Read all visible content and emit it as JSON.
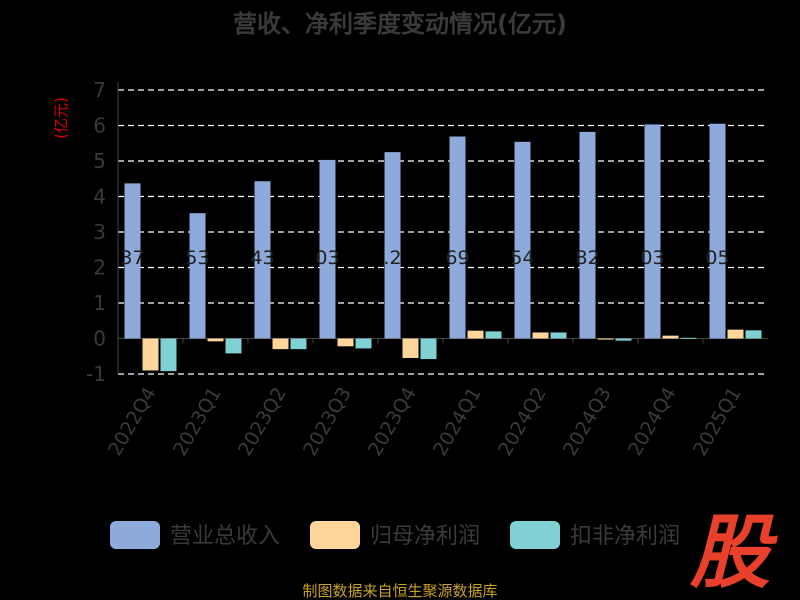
{
  "chart_data": {
    "type": "bar",
    "title": "营收、净利季度变动情况(亿元)",
    "ylabel": "(亿元)",
    "categories": [
      "2022Q4",
      "2023Q1",
      "2023Q2",
      "2023Q3",
      "2023Q4",
      "2024Q1",
      "2024Q2",
      "2024Q3",
      "2024Q4",
      "2025Q1"
    ],
    "ylim": [
      -1,
      7
    ],
    "yticks": [
      "-1",
      "0",
      "1",
      "2",
      "3",
      "4",
      "5",
      "6",
      "7"
    ],
    "grid": true,
    "legend_position": "bottom",
    "series": [
      {
        "name": "营业总收入",
        "color": "#8eaadb",
        "values": [
          4.37,
          3.53,
          4.43,
          5.03,
          5.25,
          5.69,
          5.54,
          5.82,
          6.03,
          6.05
        ],
        "labels": [
          "37",
          "53",
          "43",
          "03",
          ".2",
          "69",
          "54",
          "82",
          "03",
          "05"
        ]
      },
      {
        "name": "归母净利润",
        "color": "#ffd699",
        "values": [
          -0.9,
          -0.08,
          -0.3,
          -0.22,
          -0.55,
          0.22,
          0.17,
          -0.03,
          0.08,
          0.25
        ]
      },
      {
        "name": "扣非净利润",
        "color": "#7fd1d4",
        "values": [
          -0.92,
          -0.42,
          -0.3,
          -0.28,
          -0.58,
          0.2,
          0.17,
          -0.06,
          0.02,
          0.23
        ]
      }
    ]
  },
  "source": "制图数据来自恒生聚源数据库",
  "watermark": "股"
}
